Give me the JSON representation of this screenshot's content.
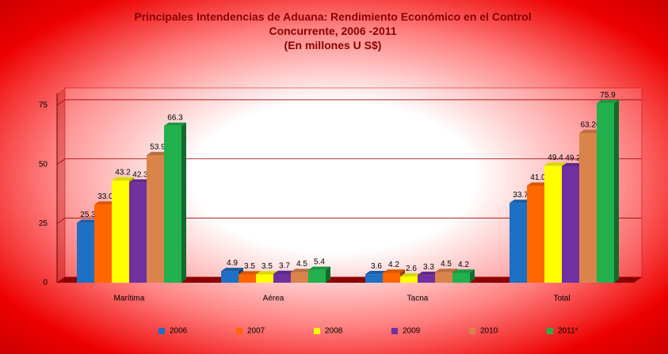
{
  "chart_data": {
    "type": "bar3d",
    "title": "Principales Intendencias de Aduana: Rendimiento Económico en el Control Concurrente, 2006 -2011",
    "subtitle": "(En millones U S$)",
    "categories": [
      "Marítima",
      "Aérea",
      "Tacna",
      "Total"
    ],
    "series": [
      {
        "name": "2006",
        "color": "#1f6fc4",
        "values": [
          25.3,
          4.9,
          3.6,
          33.7
        ],
        "value_labels": [
          "25.3",
          "4.9",
          "3.6",
          "33.7"
        ]
      },
      {
        "name": "2007",
        "color": "#ff6600",
        "values": [
          33.0,
          3.5,
          4.2,
          41.0
        ],
        "value_labels": [
          "33.0",
          "3.5",
          "4.2",
          "41.0"
        ]
      },
      {
        "name": "2008",
        "color": "#ffff00",
        "values": [
          43.2,
          3.5,
          2.6,
          49.4
        ],
        "value_labels": [
          "43.2",
          "3.5",
          "2.6",
          "49.4"
        ]
      },
      {
        "name": "2009",
        "color": "#7030a0",
        "values": [
          42.3,
          3.7,
          3.3,
          49.2
        ],
        "value_labels": [
          "42.3",
          "3.7",
          "3.3",
          "49.2"
        ]
      },
      {
        "name": "2010",
        "color": "#d9844a",
        "values": [
          53.9,
          4.5,
          4.5,
          63.26
        ],
        "value_labels": [
          "53.9",
          "4.5",
          "4.5",
          "63.26"
        ]
      },
      {
        "name": "2011*",
        "color": "#22b14c",
        "values": [
          66.3,
          5.4,
          4.2,
          75.9
        ],
        "value_labels": [
          "66.3",
          "5.4",
          "4.2",
          "75.9"
        ]
      }
    ],
    "ylim": [
      0,
      80
    ],
    "yticks": [
      0,
      25,
      50,
      75
    ],
    "grid": true,
    "legend": "bottom"
  }
}
